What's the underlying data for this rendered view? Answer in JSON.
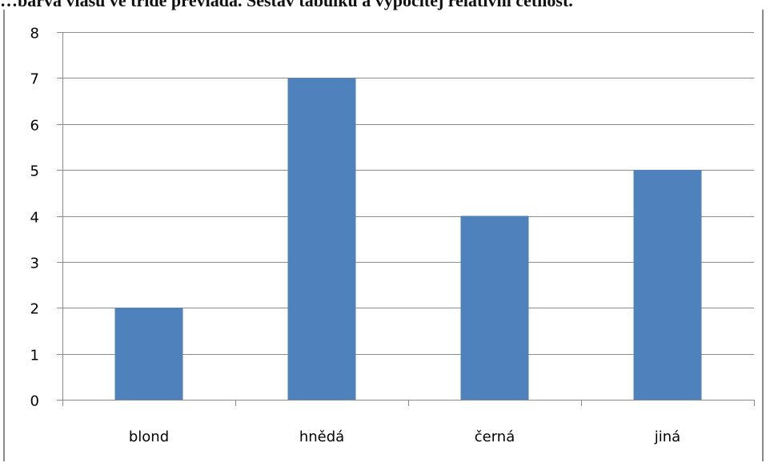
{
  "header_clip": {
    "text": "…barva vlasů ve třídě převládá. Sestav tabulku a vypočítej relativní četnost."
  },
  "chart_data": {
    "type": "bar",
    "categories": [
      "blond",
      "hnědá",
      "černá",
      "jiná"
    ],
    "values": [
      2,
      7,
      4,
      5
    ],
    "ylim": [
      0,
      8
    ],
    "yticks": [
      0,
      1,
      2,
      3,
      4,
      5,
      6,
      7,
      8
    ],
    "grid": true,
    "legend": "none",
    "bar_color": "#4f81bd",
    "grid_color": "#8c8c8c",
    "axis_color": "#8c8c8c"
  }
}
